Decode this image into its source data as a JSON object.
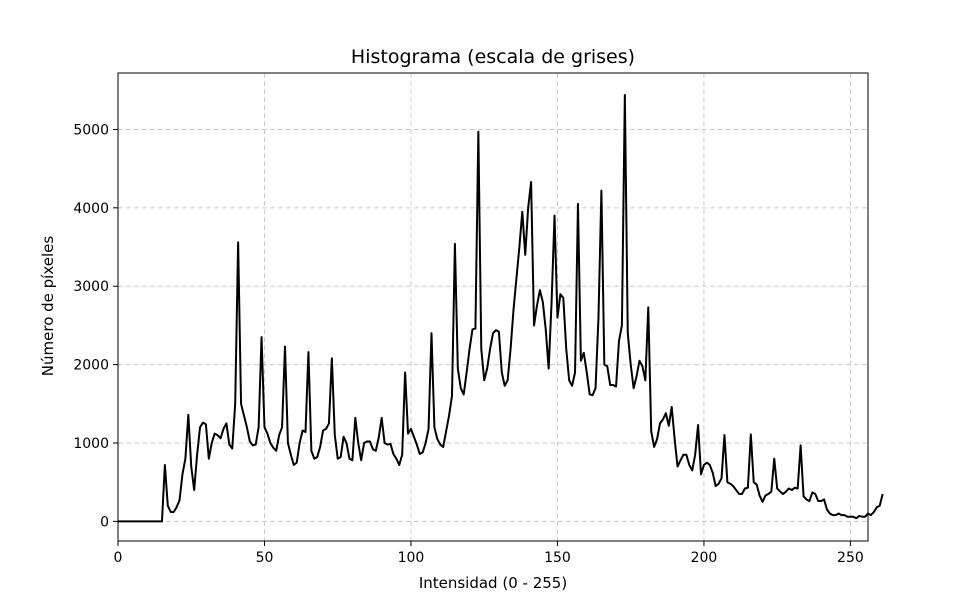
{
  "chart_data": {
    "type": "line",
    "title": "Histograma (escala de grises)",
    "xlabel": "Intensidad (0 - 255)",
    "ylabel": "Número de píxeles",
    "xlim": [
      0,
      256
    ],
    "ylim": [
      -250,
      5720
    ],
    "xticks": [
      0,
      50,
      100,
      150,
      200,
      250
    ],
    "yticks": [
      0,
      1000,
      2000,
      3000,
      4000,
      5000
    ],
    "xtick_labels": [
      "0",
      "50",
      "100",
      "150",
      "200",
      "250"
    ],
    "ytick_labels": [
      "0",
      "1000",
      "2000",
      "3000",
      "4000",
      "5000"
    ],
    "grid": true,
    "line_color": "#000000",
    "series": [
      {
        "values": [
          0,
          0,
          0,
          0,
          0,
          0,
          0,
          0,
          0,
          0,
          0,
          0,
          0,
          0,
          0,
          0,
          720,
          200,
          120,
          120,
          180,
          270,
          600,
          800,
          1360,
          700,
          400,
          850,
          1200,
          1260,
          1240,
          800,
          1000,
          1120,
          1100,
          1060,
          1180,
          1250,
          980,
          930,
          1500,
          3560,
          1500,
          1350,
          1200,
          1020,
          970,
          980,
          1200,
          2350,
          1200,
          1120,
          1000,
          940,
          900,
          1100,
          1200,
          2230,
          1000,
          850,
          720,
          750,
          1000,
          1160,
          1140,
          2160,
          900,
          800,
          820,
          950,
          1160,
          1180,
          1250,
          2080,
          1100,
          800,
          820,
          1080,
          1000,
          800,
          780,
          1320,
          1000,
          780,
          1000,
          1020,
          1020,
          920,
          900,
          1070,
          1320,
          1000,
          980,
          990,
          860,
          800,
          720,
          850,
          1900,
          1120,
          1180,
          1080,
          980,
          860,
          880,
          1000,
          1180,
          2400,
          1200,
          1050,
          980,
          950,
          1150,
          1350,
          1600,
          3540,
          1950,
          1700,
          1620,
          1900,
          2200,
          2450,
          2460,
          4970,
          2200,
          1800,
          1950,
          2200,
          2400,
          2440,
          2420,
          1900,
          1730,
          1800,
          2200,
          2700,
          3100,
          3500,
          3950,
          3400,
          4000,
          4330,
          2500,
          2750,
          2950,
          2800,
          2450,
          1950,
          2800,
          3900,
          2600,
          2900,
          2850,
          2200,
          1800,
          1730,
          1900,
          4050,
          2050,
          2150,
          1900,
          1620,
          1610,
          1700,
          2600,
          4220,
          2000,
          1980,
          1740,
          1740,
          1720,
          2300,
          2500,
          5440,
          2400,
          2000,
          1700,
          1850,
          2050,
          1980,
          1800,
          2730,
          1150,
          950,
          1050,
          1250,
          1300,
          1380,
          1220,
          1460,
          1050,
          700,
          780,
          850,
          850,
          720,
          650,
          850,
          1230,
          600,
          720,
          750,
          720,
          620,
          450,
          480,
          550,
          1100,
          500,
          480,
          450,
          400,
          350,
          350,
          420,
          430,
          1110,
          500,
          470,
          330,
          250,
          330,
          350,
          380,
          800,
          420,
          380,
          350,
          380,
          420,
          400,
          430,
          420,
          970,
          320,
          280,
          260,
          370,
          350,
          260,
          260,
          280,
          150,
          100,
          80,
          80,
          100,
          80,
          80,
          60,
          60,
          60,
          40,
          70,
          60,
          60,
          100,
          80,
          120,
          180,
          200,
          350
        ]
      }
    ]
  }
}
